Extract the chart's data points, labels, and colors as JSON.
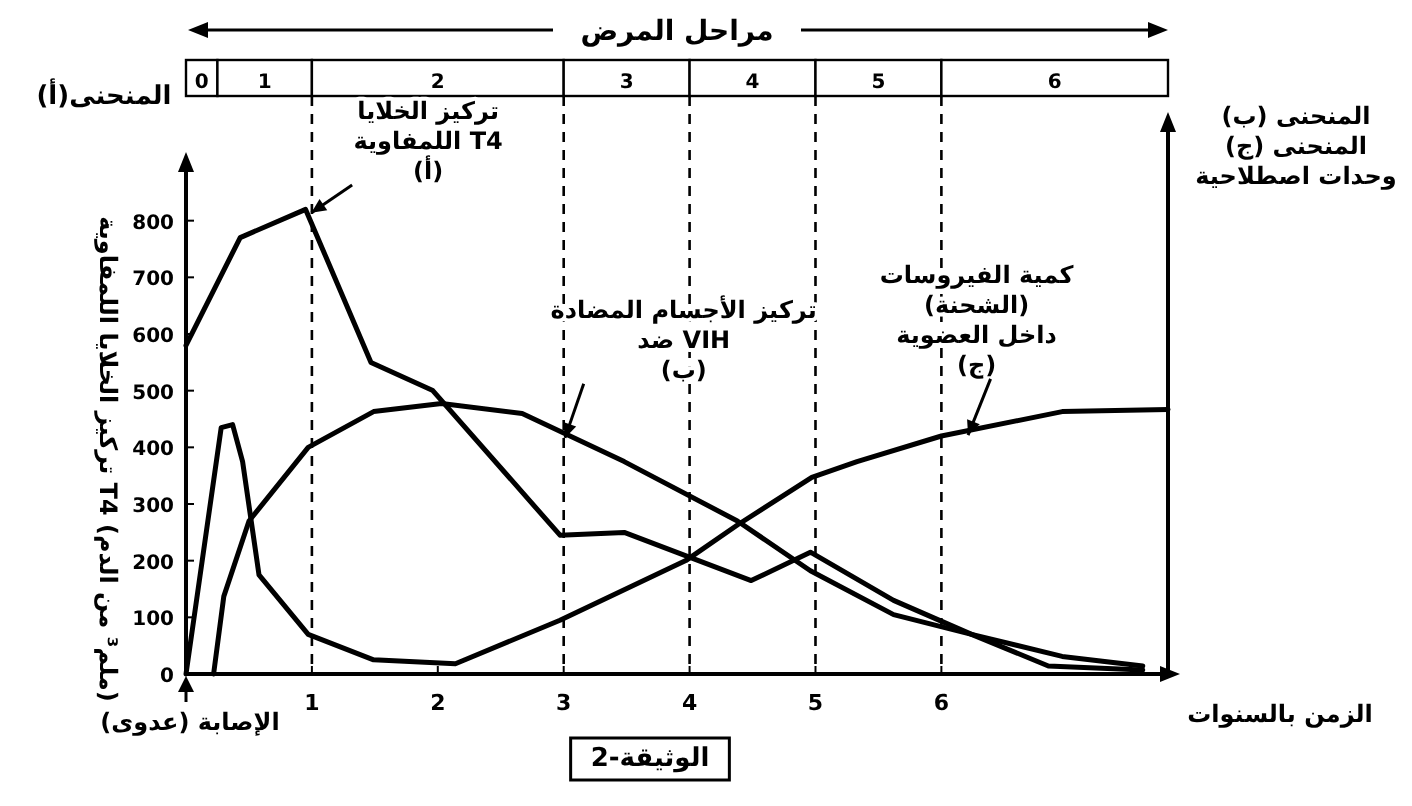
{
  "chart_data": {
    "type": "line",
    "title": "مراحل المرض",
    "xlabel": "الزمن بالسنوات",
    "ylabel": "تركيز الخلايا اللمفاوية T4 (ملم³ من الدم)",
    "y2label": "المنحنى (ب)\nالمنحنى (ج)\nوحدات اصطلاحية",
    "xlim": [
      0,
      7.8
    ],
    "xticks": [
      1,
      2,
      3,
      4,
      5,
      6
    ],
    "ylim": [
      0,
      900
    ],
    "yticks": [
      0,
      100,
      200,
      300,
      400,
      500,
      600,
      700,
      800
    ],
    "line_style": "solid",
    "series": [
      {
        "color": "#000000",
        "x": [
          0,
          0.43,
          0.95,
          1.47,
          1.96,
          2.97,
          3.48,
          4.49,
          4.96,
          5.62,
          6.24,
          6.85,
          7.6
        ],
        "values": [
          580,
          770,
          820,
          550,
          500,
          245,
          250,
          165,
          215,
          130,
          70,
          14,
          7
        ]
      },
      {
        "color": "#000000",
        "x": [
          0.22,
          0.3,
          0.5,
          0.97,
          1.49,
          2.03,
          2.67,
          3.48,
          4.38,
          4.96,
          5.62,
          6.24,
          6.96,
          7.6
        ],
        "values": [
          0,
          137,
          270,
          400,
          463,
          477,
          460,
          375,
          270,
          182,
          105,
          70,
          31,
          14
        ]
      },
      {
        "color": "#000000",
        "x": [
          0,
          0.28,
          0.37,
          0.45,
          0.58,
          0.97,
          1.49,
          2.14,
          2.97,
          3.97,
          4.38,
          4.97,
          5.33,
          6.0,
          6.96,
          7.8
        ],
        "values": [
          0,
          435,
          440,
          375,
          175,
          70,
          25,
          18,
          95,
          200,
          263,
          347,
          375,
          420,
          463,
          467
        ]
      }
    ],
    "ref_lines": [
      {
        "axis": "x",
        "value": 1,
        "line_style": "dashed"
      },
      {
        "axis": "x",
        "value": 3,
        "line_style": "dashed"
      },
      {
        "axis": "x",
        "value": 4,
        "line_style": "dashed"
      },
      {
        "axis": "x",
        "value": 5,
        "line_style": "dashed"
      },
      {
        "axis": "x",
        "value": 6,
        "line_style": "dashed"
      }
    ],
    "annotations": [
      "0",
      "1",
      "2",
      "3",
      "4",
      "5",
      "6",
      {
        "text": "تركيز الخلايا\nاللمفاوية T4\n(أ)",
        "x": 0.97,
        "y": 810
      },
      {
        "text": "تركيز الأجسام المضادة\nضد VIH\n(ب)",
        "x": 3.0,
        "y": 410
      },
      {
        "text": "كمية الفيروسات\n(الشحنة)\nداخل العضوية\n(ج)",
        "x": 6.2,
        "y": 415
      },
      {
        "text": "الإصابة (عدوى)",
        "x": 0,
        "y": 0
      },
      "المنحنى(أ)",
      "الوثيقة-2"
    ]
  }
}
